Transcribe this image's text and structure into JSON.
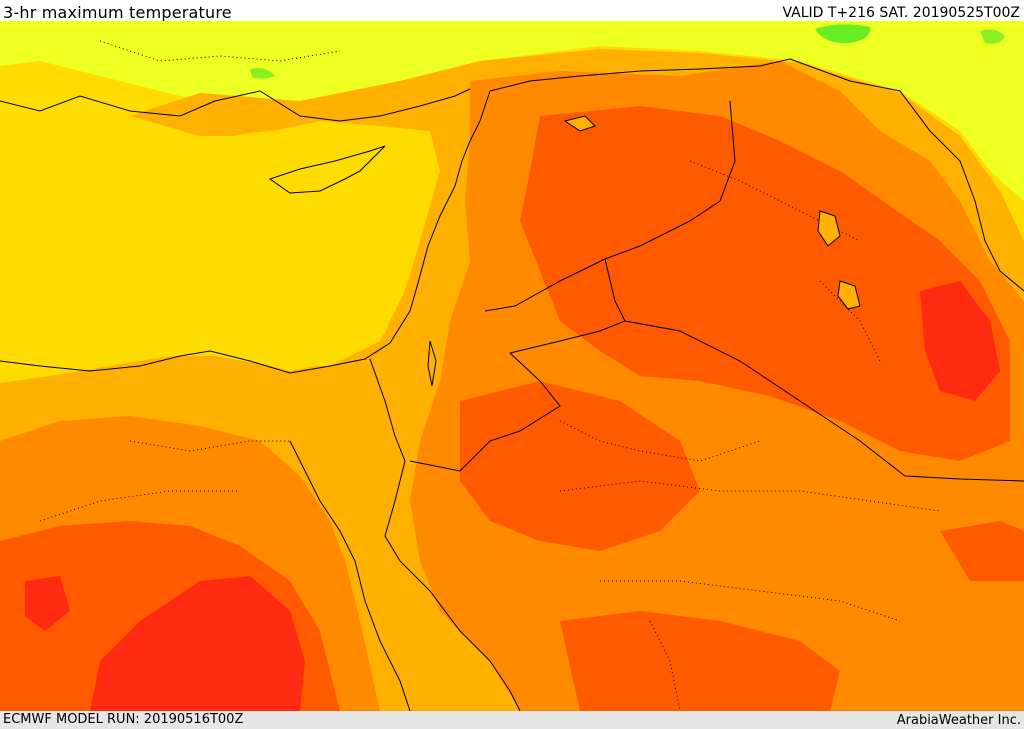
{
  "header": {
    "title": "3-hr maximum temperature",
    "valid": "VALID T+216 SAT. 20190525T00Z"
  },
  "footer": {
    "model_run": "ECMWF MODEL RUN: 20190516T00Z",
    "credit": "ArabiaWeather Inc."
  },
  "map": {
    "region": "Eastern Mediterranean / Middle East",
    "field": "3-hr maximum temperature",
    "palette": {
      "cool_green": "#66ee22",
      "yellow_light": "#eeff22",
      "yellow": "#ffdc00",
      "amber": "#ffb000",
      "orange": "#ff8a00",
      "orange_red": "#ff5a00",
      "red": "#ff2a10"
    },
    "border_color": "#000000"
  }
}
